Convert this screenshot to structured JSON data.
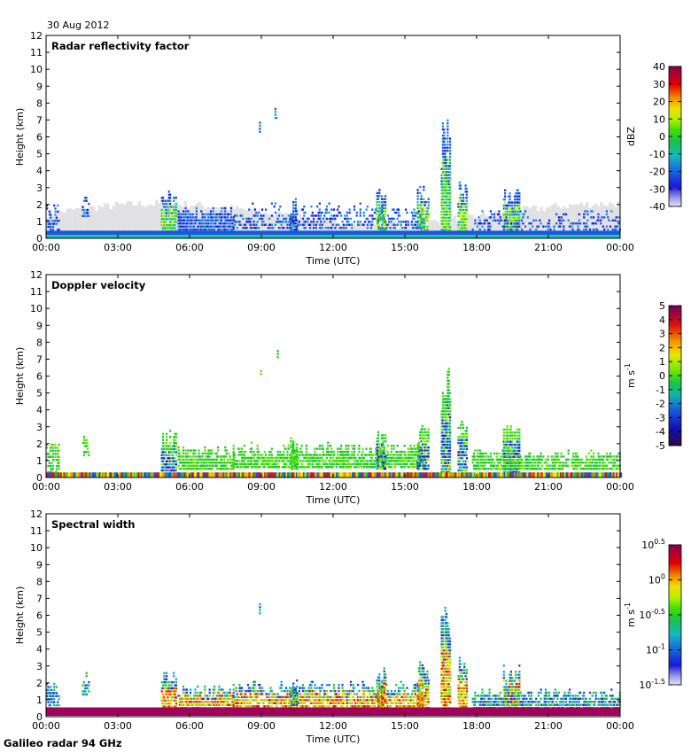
{
  "date_label": "30 Aug 2012",
  "footer": "Galileo radar 94 GHz",
  "chart_data": [
    {
      "type": "heatmap",
      "title": "Radar reflectivity factor",
      "xlabel": "Time (UTC)",
      "ylabel": "Height (km)",
      "x_ticks": [
        "00:00",
        "03:00",
        "06:00",
        "09:00",
        "12:00",
        "15:00",
        "18:00",
        "21:00",
        "00:00"
      ],
      "y_ticks": [
        "0",
        "1",
        "2",
        "3",
        "4",
        "5",
        "6",
        "7",
        "8",
        "9",
        "10",
        "11",
        "12"
      ],
      "xlim_hours": [
        0,
        24
      ],
      "ylim_km": [
        0,
        12
      ],
      "colorbar": {
        "unit": "dBZ",
        "ticks": [
          "-40",
          "-30",
          "-20",
          "-10",
          "0",
          "10",
          "20",
          "30",
          "40"
        ],
        "range": [
          -40,
          40
        ]
      }
    },
    {
      "type": "heatmap",
      "title": "Doppler velocity",
      "xlabel": "Time (UTC)",
      "ylabel": "Height (km)",
      "x_ticks": [
        "00:00",
        "03:00",
        "06:00",
        "09:00",
        "12:00",
        "15:00",
        "18:00",
        "21:00",
        "00:00"
      ],
      "y_ticks": [
        "0",
        "1",
        "2",
        "3",
        "4",
        "5",
        "6",
        "7",
        "8",
        "9",
        "10",
        "11",
        "12"
      ],
      "xlim_hours": [
        0,
        24
      ],
      "ylim_km": [
        0,
        12
      ],
      "colorbar": {
        "unit_base": "m s",
        "unit_sup": "-1",
        "ticks": [
          "-5",
          "-4",
          "-3",
          "-2",
          "-1",
          "0",
          "1",
          "2",
          "3",
          "4",
          "5"
        ],
        "range": [
          -5,
          5
        ]
      }
    },
    {
      "type": "heatmap",
      "title": "Spectral width",
      "xlabel": "Time (UTC)",
      "ylabel": "Height (km)",
      "x_ticks": [
        "00:00",
        "03:00",
        "06:00",
        "09:00",
        "12:00",
        "15:00",
        "18:00",
        "21:00",
        "00:00"
      ],
      "y_ticks": [
        "0",
        "1",
        "2",
        "3",
        "4",
        "5",
        "6",
        "7",
        "8",
        "9",
        "10",
        "11",
        "12"
      ],
      "xlim_hours": [
        0,
        24
      ],
      "ylim_km": [
        0,
        12
      ],
      "colorbar": {
        "unit_base": "m s",
        "unit_sup": "-1",
        "tick_base": "10",
        "tick_exponents": [
          "-1.5",
          "-1",
          "-0.5",
          "0",
          "0.5"
        ],
        "scale": "log",
        "range": [
          -1.5,
          0.5
        ]
      }
    }
  ]
}
